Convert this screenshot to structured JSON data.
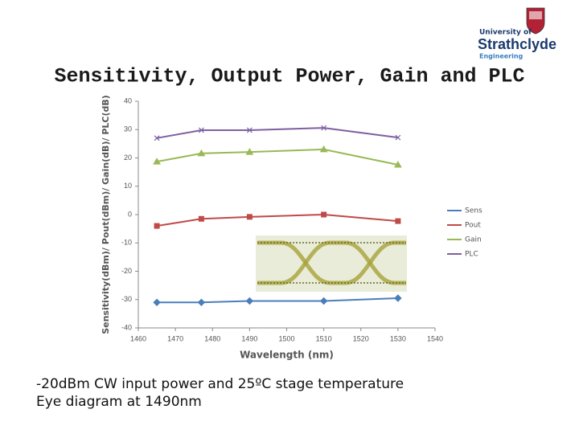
{
  "chart_data": {
    "type": "line",
    "title": "Sensitivity, Output Power, Gain and PLC",
    "x_label": "Wavelength (nm)",
    "y_label": "Sensitivity(dBm)/ Pout(dBm)/ Gain(dB)/ PLC(dB)",
    "x": [
      1465,
      1477,
      1490,
      1510,
      1530
    ],
    "series": [
      {
        "name": "Sens",
        "color": "#4a7ebb",
        "marker": "diamond",
        "values": [
          -31,
          -31,
          -30.5,
          -30.5,
          -29.5
        ]
      },
      {
        "name": "Pout",
        "color": "#be4b48",
        "marker": "square",
        "values": [
          -4,
          -1.5,
          -0.8,
          0,
          -2.3
        ]
      },
      {
        "name": "Gain",
        "color": "#98b954",
        "marker": "triangle",
        "values": [
          18.7,
          21.6,
          22.1,
          23,
          17.6
        ]
      },
      {
        "name": "PLC",
        "color": "#7d60a0",
        "marker": "cross",
        "values": [
          27,
          29.8,
          29.8,
          30.6,
          27.2
        ]
      }
    ],
    "xlim": [
      1460,
      1540
    ],
    "xticks": [
      1460,
      1470,
      1480,
      1490,
      1500,
      1510,
      1520,
      1530,
      1540
    ],
    "ylim": [
      -40,
      40
    ],
    "yticks": [
      -40,
      -30,
      -20,
      -10,
      0,
      10,
      20,
      30,
      40
    ],
    "grid": false,
    "legend": "right"
  },
  "logo": {
    "line1": "University of",
    "line2": "Strathclyde",
    "line3": "Engineering"
  },
  "caption": [
    "-20dBm CW input power and 25ºC stage temperature",
    "Eye diagram at 1490nm"
  ]
}
